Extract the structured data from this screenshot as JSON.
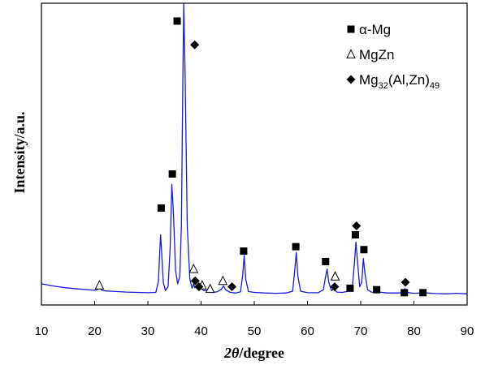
{
  "chart_data": {
    "type": "line",
    "xlabel_italic": "2θ",
    "xlabel_rest": "/degree",
    "ylabel": "Intensity/a.u.",
    "xlim": [
      10,
      90
    ],
    "ylim": [
      0,
      100
    ],
    "x_ticks": [
      10,
      20,
      30,
      40,
      50,
      60,
      70,
      80,
      90
    ],
    "line_color": "#1a1adf",
    "series": [
      {
        "values": [
          [
            10,
            5.5
          ],
          [
            12,
            4.8
          ],
          [
            14,
            4.3
          ],
          [
            16,
            3.9
          ],
          [
            18,
            3.6
          ],
          [
            20,
            3.3
          ],
          [
            20.5,
            3.5
          ],
          [
            20.9,
            4.6
          ],
          [
            21.3,
            3.4
          ],
          [
            22,
            3.1
          ],
          [
            24,
            2.9
          ],
          [
            26,
            2.7
          ],
          [
            28,
            2.6
          ],
          [
            30,
            2.5
          ],
          [
            31.5,
            2.6
          ],
          [
            32.0,
            6.5
          ],
          [
            32.2,
            15.0
          ],
          [
            32.4,
            22.0
          ],
          [
            32.6,
            16.0
          ],
          [
            32.9,
            6.0
          ],
          [
            33.3,
            3.2
          ],
          [
            33.8,
            4.5
          ],
          [
            34.2,
            18.0
          ],
          [
            34.5,
            39.0
          ],
          [
            34.8,
            30.0
          ],
          [
            35.2,
            10.0
          ],
          [
            35.6,
            5.5
          ],
          [
            36.0,
            8.0
          ],
          [
            36.3,
            25.0
          ],
          [
            36.55,
            70.0
          ],
          [
            36.75,
            100.0
          ],
          [
            37.0,
            75.0
          ],
          [
            37.4,
            25.0
          ],
          [
            37.9,
            7.0
          ],
          [
            38.3,
            4.0
          ],
          [
            38.6,
            5.5
          ],
          [
            38.8,
            4.2
          ],
          [
            39.3,
            4.5
          ],
          [
            39.7,
            3.3
          ],
          [
            40.0,
            4.0
          ],
          [
            40.5,
            3.2
          ],
          [
            41.2,
            3.4
          ],
          [
            42.0,
            2.6
          ],
          [
            43.0,
            2.8
          ],
          [
            43.8,
            3.6
          ],
          [
            44.2,
            4.8
          ],
          [
            44.6,
            3.5
          ],
          [
            45.5,
            2.6
          ],
          [
            46.5,
            2.4
          ],
          [
            47.4,
            2.8
          ],
          [
            47.8,
            8.0
          ],
          [
            48.1,
            15.0
          ],
          [
            48.4,
            7.0
          ],
          [
            48.9,
            2.9
          ],
          [
            50,
            2.6
          ],
          [
            52,
            2.4
          ],
          [
            54,
            2.3
          ],
          [
            56,
            2.4
          ],
          [
            57.2,
            3.0
          ],
          [
            57.6,
            10.0
          ],
          [
            57.9,
            16.0
          ],
          [
            58.2,
            8.0
          ],
          [
            58.7,
            3.0
          ],
          [
            60,
            2.5
          ],
          [
            62,
            2.5
          ],
          [
            63.0,
            3.5
          ],
          [
            63.4,
            8.0
          ],
          [
            63.7,
            10.5
          ],
          [
            64.0,
            6.0
          ],
          [
            64.5,
            3.2
          ],
          [
            65.0,
            3.8
          ],
          [
            65.5,
            2.7
          ],
          [
            66.5,
            2.6
          ],
          [
            67.5,
            2.9
          ],
          [
            68.0,
            4.5
          ],
          [
            68.4,
            3.6
          ],
          [
            68.8,
            12.0
          ],
          [
            69.1,
            19.5
          ],
          [
            69.4,
            13.0
          ],
          [
            69.8,
            4.5
          ],
          [
            70.2,
            6.0
          ],
          [
            70.5,
            14.0
          ],
          [
            70.8,
            9.0
          ],
          [
            71.3,
            3.5
          ],
          [
            72,
            2.7
          ],
          [
            72.7,
            2.6
          ],
          [
            73.1,
            4.2
          ],
          [
            73.5,
            2.7
          ],
          [
            75,
            2.4
          ],
          [
            77,
            2.4
          ],
          [
            78.0,
            2.5
          ],
          [
            78.3,
            3.9
          ],
          [
            78.7,
            2.6
          ],
          [
            80,
            2.3
          ],
          [
            81.6,
            2.4
          ],
          [
            82.0,
            3.5
          ],
          [
            82.4,
            2.4
          ],
          [
            84,
            2.2
          ],
          [
            86,
            2.1
          ],
          [
            88,
            2.3
          ],
          [
            90,
            2.1
          ]
        ]
      }
    ],
    "markers": [
      {
        "shape": "square",
        "x": 32.5,
        "y": 31
      },
      {
        "shape": "square",
        "x": 34.6,
        "y": 42.5
      },
      {
        "shape": "square",
        "x": 35.5,
        "y": 94
      },
      {
        "shape": "square",
        "x": 48.0,
        "y": 16.5
      },
      {
        "shape": "square",
        "x": 57.8,
        "y": 18
      },
      {
        "shape": "square",
        "x": 63.4,
        "y": 13
      },
      {
        "shape": "square",
        "x": 68.0,
        "y": 4
      },
      {
        "shape": "square",
        "x": 69.0,
        "y": 22
      },
      {
        "shape": "square",
        "x": 70.6,
        "y": 17
      },
      {
        "shape": "square",
        "x": 73.0,
        "y": 3.5
      },
      {
        "shape": "square",
        "x": 78.2,
        "y": 2.5
      },
      {
        "shape": "square",
        "x": 81.7,
        "y": 2.5
      },
      {
        "shape": "triangle",
        "x": 20.9,
        "y": 5
      },
      {
        "shape": "triangle",
        "x": 38.6,
        "y": 10.5
      },
      {
        "shape": "triangle",
        "x": 40.2,
        "y": 5
      },
      {
        "shape": "triangle",
        "x": 41.7,
        "y": 3.8
      },
      {
        "shape": "triangle",
        "x": 44.1,
        "y": 6.5
      },
      {
        "shape": "triangle",
        "x": 65.2,
        "y": 8
      },
      {
        "shape": "diamond",
        "x": 38.8,
        "y": 86
      },
      {
        "shape": "diamond",
        "x": 38.9,
        "y": 6.5
      },
      {
        "shape": "diamond",
        "x": 39.6,
        "y": 4.5
      },
      {
        "shape": "diamond",
        "x": 45.8,
        "y": 4.5
      },
      {
        "shape": "diamond",
        "x": 65.1,
        "y": 4.5
      },
      {
        "shape": "diamond",
        "x": 69.2,
        "y": 25
      },
      {
        "shape": "diamond",
        "x": 78.4,
        "y": 6
      }
    ],
    "legend": [
      {
        "shape": "square",
        "label": "α-Mg"
      },
      {
        "shape": "triangle",
        "label": "MgZn"
      },
      {
        "shape": "diamond",
        "label_parts": [
          "Mg",
          "32",
          "(Al,Zn)",
          "49"
        ]
      }
    ]
  }
}
